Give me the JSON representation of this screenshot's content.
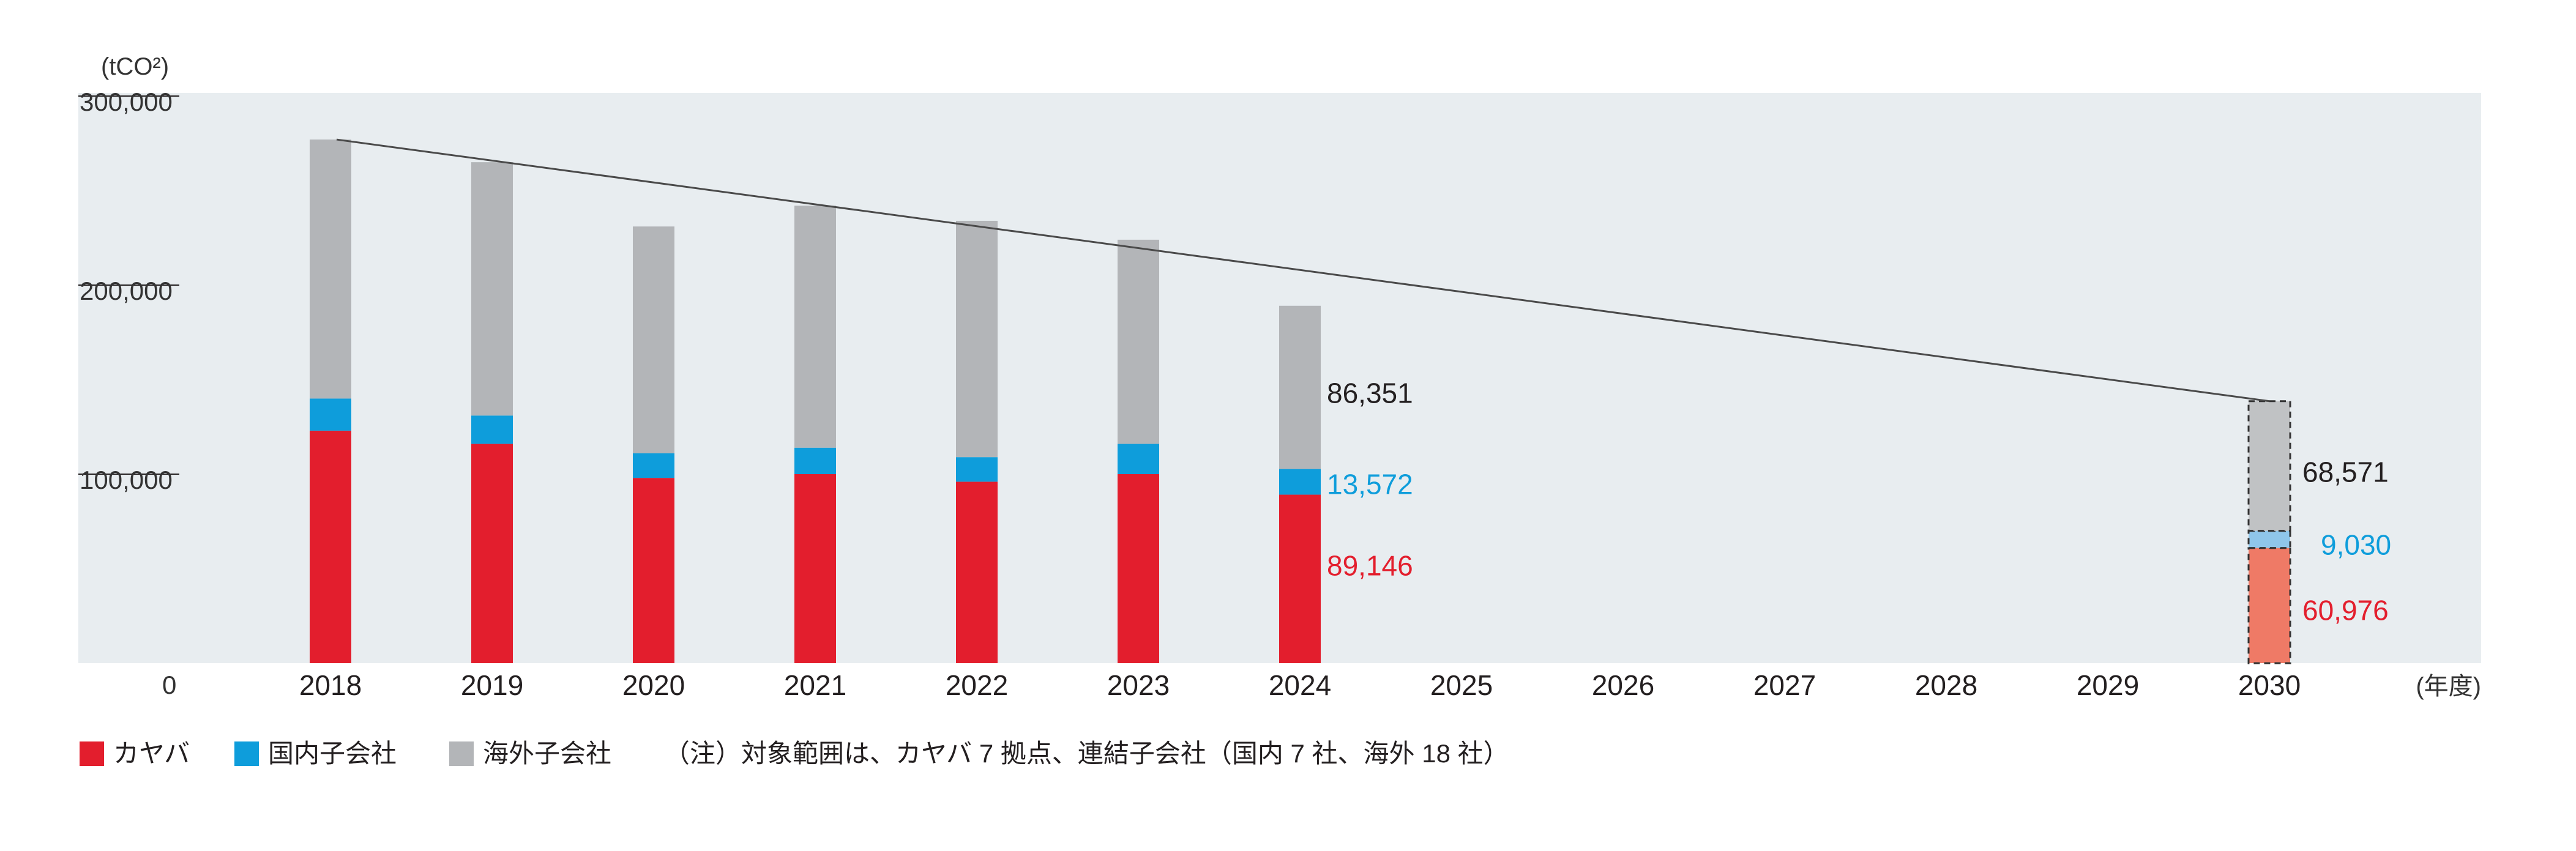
{
  "chart_data": {
    "type": "bar",
    "stacked": true,
    "unit_label": "(tCO²)",
    "x_unit_label": "(年度)",
    "categories": [
      "2018",
      "2019",
      "2020",
      "2021",
      "2022",
      "2023",
      "2024",
      "2025",
      "2026",
      "2027",
      "2028",
      "2029",
      "2030"
    ],
    "ylim": [
      0,
      300000
    ],
    "yticks": [
      {
        "value": 0,
        "label": "0"
      },
      {
        "value": 100000,
        "label": "100,000"
      },
      {
        "value": 200000,
        "label": "200,000"
      },
      {
        "value": 300000,
        "label": "300,000"
      }
    ],
    "series": [
      {
        "name": "カヤバ",
        "color": "#e31e2d",
        "target_color": "#ef7a66",
        "values": [
          123000,
          116000,
          98000,
          100000,
          96000,
          100000,
          89146,
          null,
          null,
          null,
          null,
          null,
          60976
        ]
      },
      {
        "name": "国内子会社",
        "color": "#0e9ddb",
        "target_color": "#8fc6ea",
        "values": [
          17000,
          15000,
          13000,
          14000,
          13000,
          16000,
          13572,
          null,
          null,
          null,
          null,
          null,
          9030
        ]
      },
      {
        "name": "海外子会社",
        "color": "#b3b5b8",
        "target_color": "#c0c2c4",
        "values": [
          137000,
          134000,
          120000,
          128000,
          125000,
          108000,
          86351,
          null,
          null,
          null,
          null,
          null,
          68571
        ]
      }
    ],
    "target_category": "2030",
    "trend_line": {
      "from": "2018",
      "to": "2030"
    },
    "data_labels": [
      {
        "category": "2024",
        "series": "海外子会社",
        "text": "86,351",
        "color": "#231f20"
      },
      {
        "category": "2024",
        "series": "国内子会社",
        "text": "13,572",
        "color": "#0e9ddb"
      },
      {
        "category": "2024",
        "series": "カヤバ",
        "text": "89,146",
        "color": "#e31e2d"
      },
      {
        "category": "2030",
        "series": "海外子会社",
        "text": "68,571",
        "color": "#231f20"
      },
      {
        "category": "2030",
        "series": "国内子会社",
        "text": "9,030",
        "color": "#0e9ddb"
      },
      {
        "category": "2030",
        "series": "カヤバ",
        "text": "60,976",
        "color": "#e31e2d"
      }
    ],
    "legend": [
      {
        "name": "カヤバ",
        "color": "#e31e2d"
      },
      {
        "name": "国内子会社",
        "color": "#0e9ddb"
      },
      {
        "name": "海外子会社",
        "color": "#b3b5b8"
      }
    ],
    "note": "（注）対象範囲は、カヤバ 7 拠点、連結子会社（国内 7 社、海外 18 社）",
    "plot_background": "#e8edf0"
  }
}
